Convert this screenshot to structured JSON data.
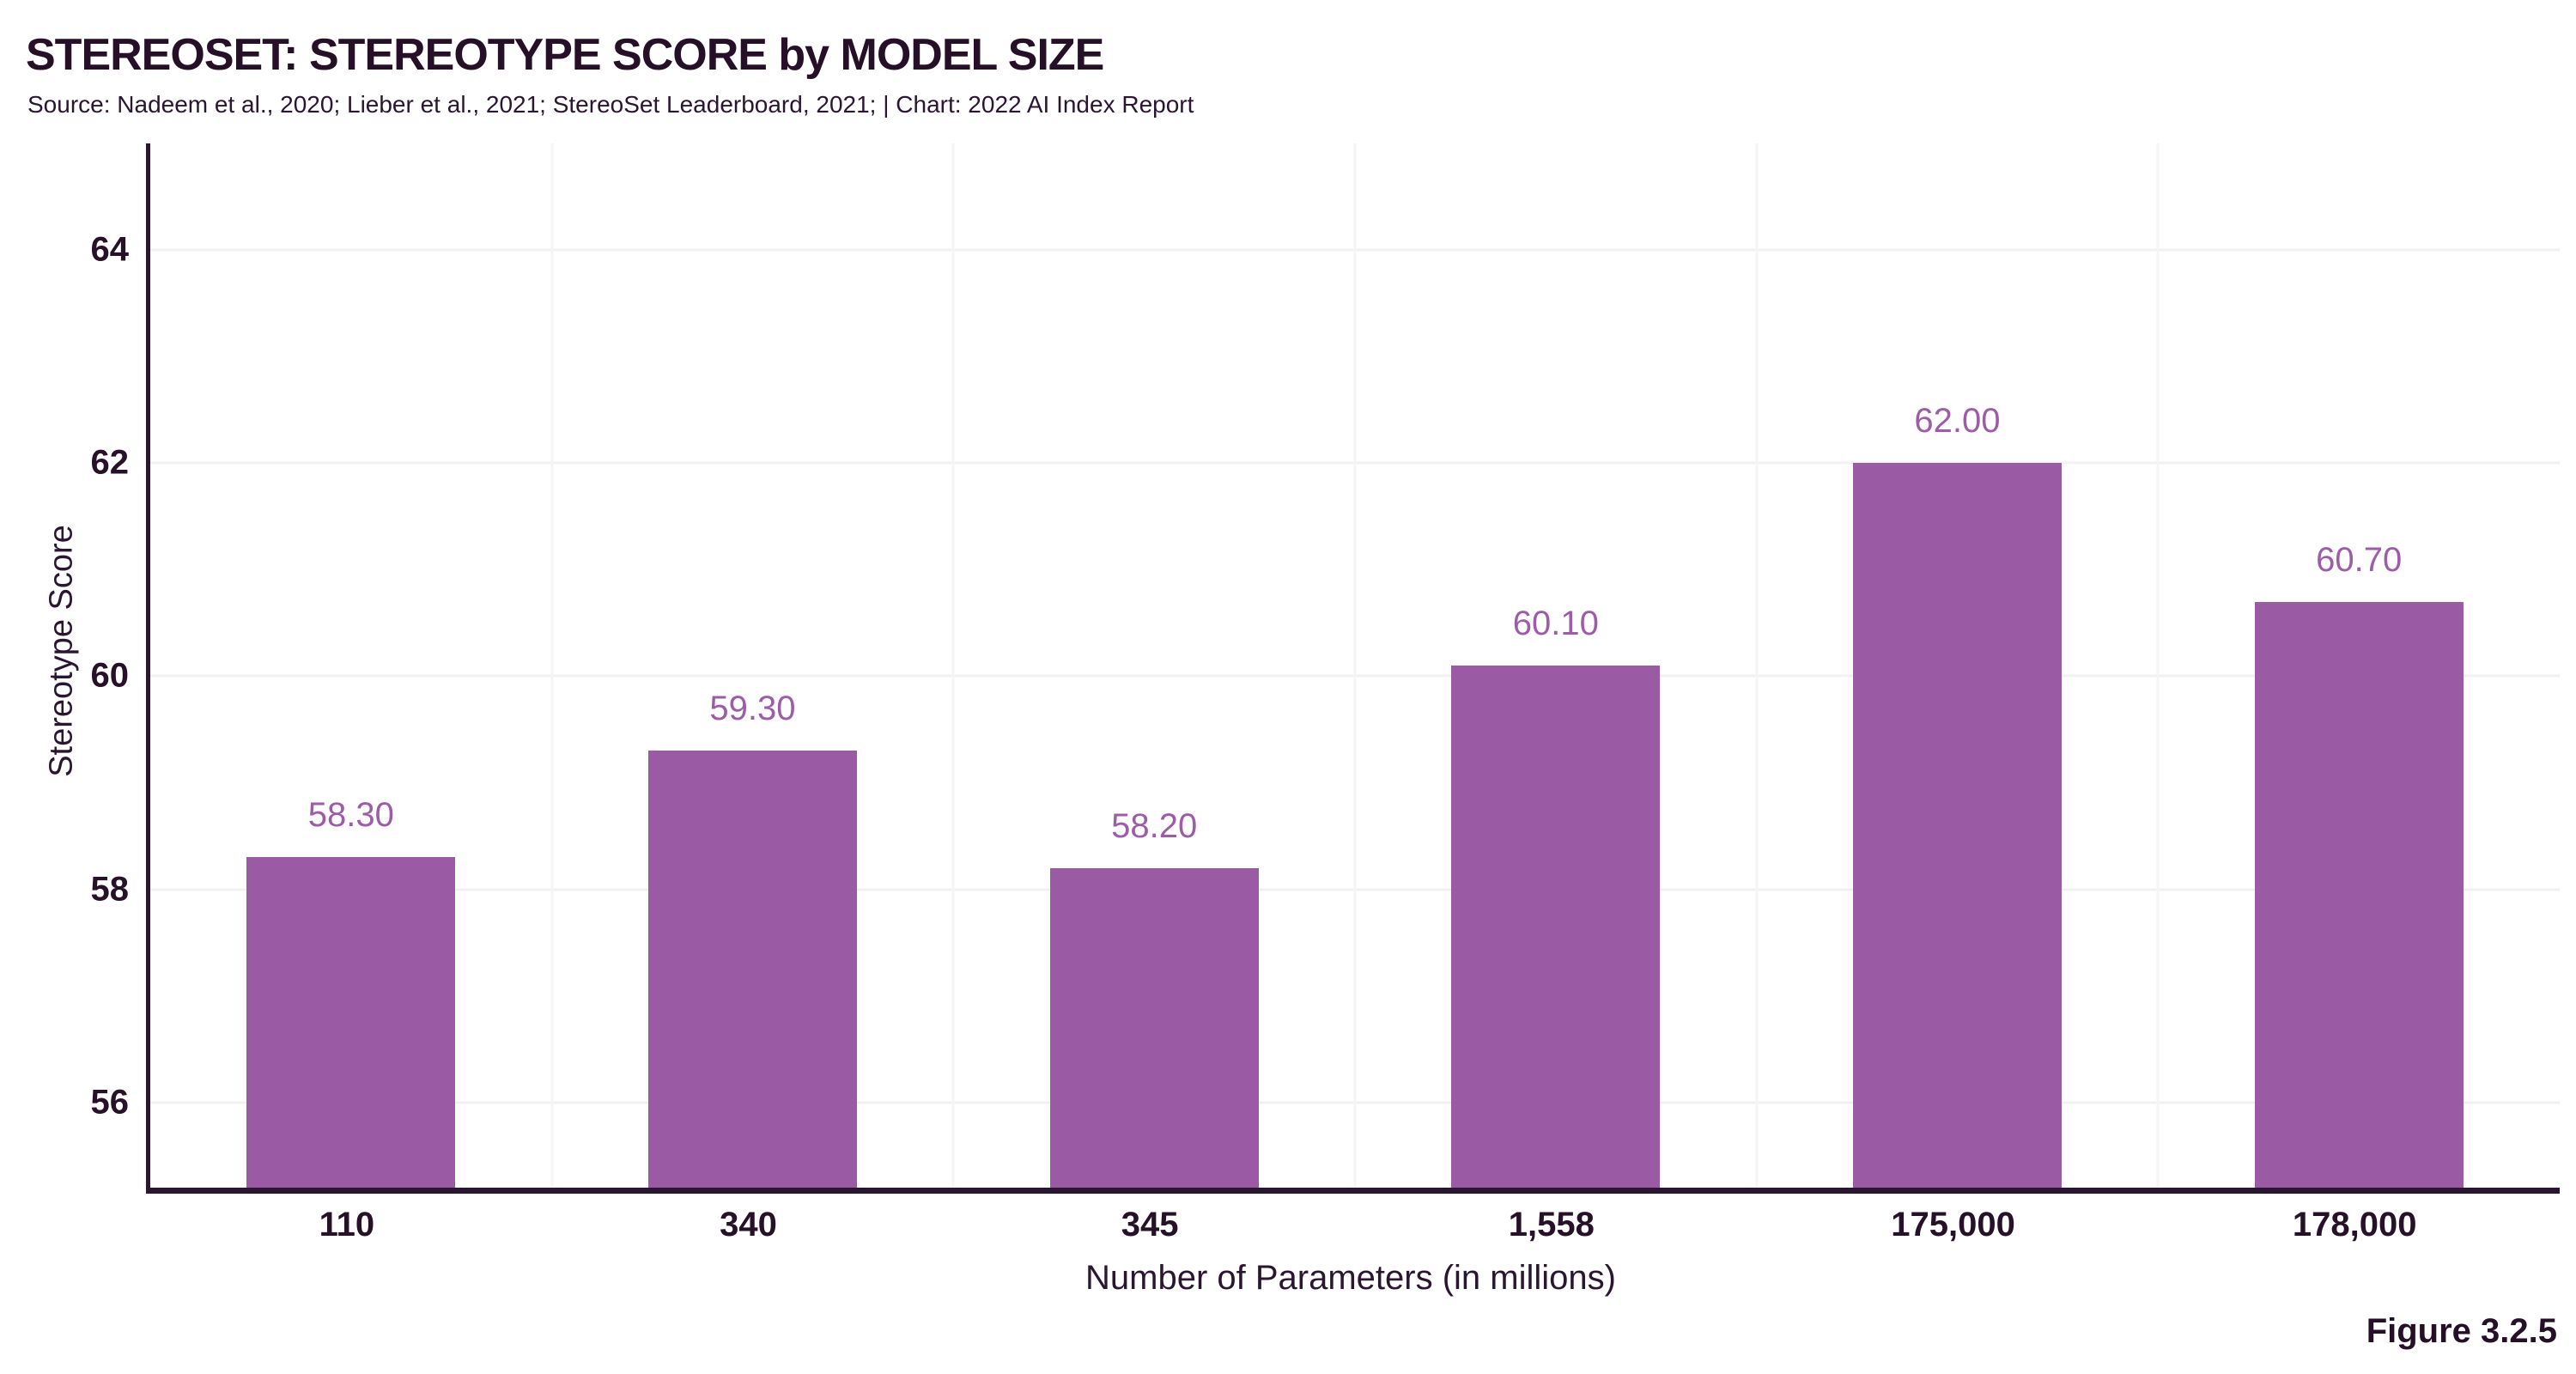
{
  "header": {
    "title": "STEREOSET: STEREOTYPE SCORE by MODEL SIZE",
    "source": "Source: Nadeem et al., 2020; Lieber et al., 2021; StereoSet Leaderboard, 2021; | Chart: 2022 AI Index Report"
  },
  "footer": {
    "figure_label": "Figure 3.2.5"
  },
  "chart_data": {
    "type": "bar",
    "title": "STEREOSET: STEREOTYPE SCORE by MODEL SIZE",
    "categories": [
      "110",
      "340",
      "345",
      "1,558",
      "175,000",
      "178,000"
    ],
    "values": [
      58.3,
      59.3,
      58.2,
      60.1,
      62.0,
      60.7
    ],
    "value_labels": [
      "58.30",
      "59.30",
      "58.20",
      "60.10",
      "62.00",
      "60.70"
    ],
    "xlabel": "Number of Parameters (in millions)",
    "ylabel": "Stereotype Score",
    "ylim": [
      55.2,
      65
    ],
    "yticks": [
      56,
      58,
      60,
      62,
      64
    ],
    "grid": true,
    "legend": "none",
    "colors": {
      "bar": "#9A5BA4",
      "value_label": "#9D5CA7",
      "axis": "#2A1630",
      "grid": "#F2F0F3",
      "text": "#271129",
      "background": "#FFFFFF"
    }
  }
}
